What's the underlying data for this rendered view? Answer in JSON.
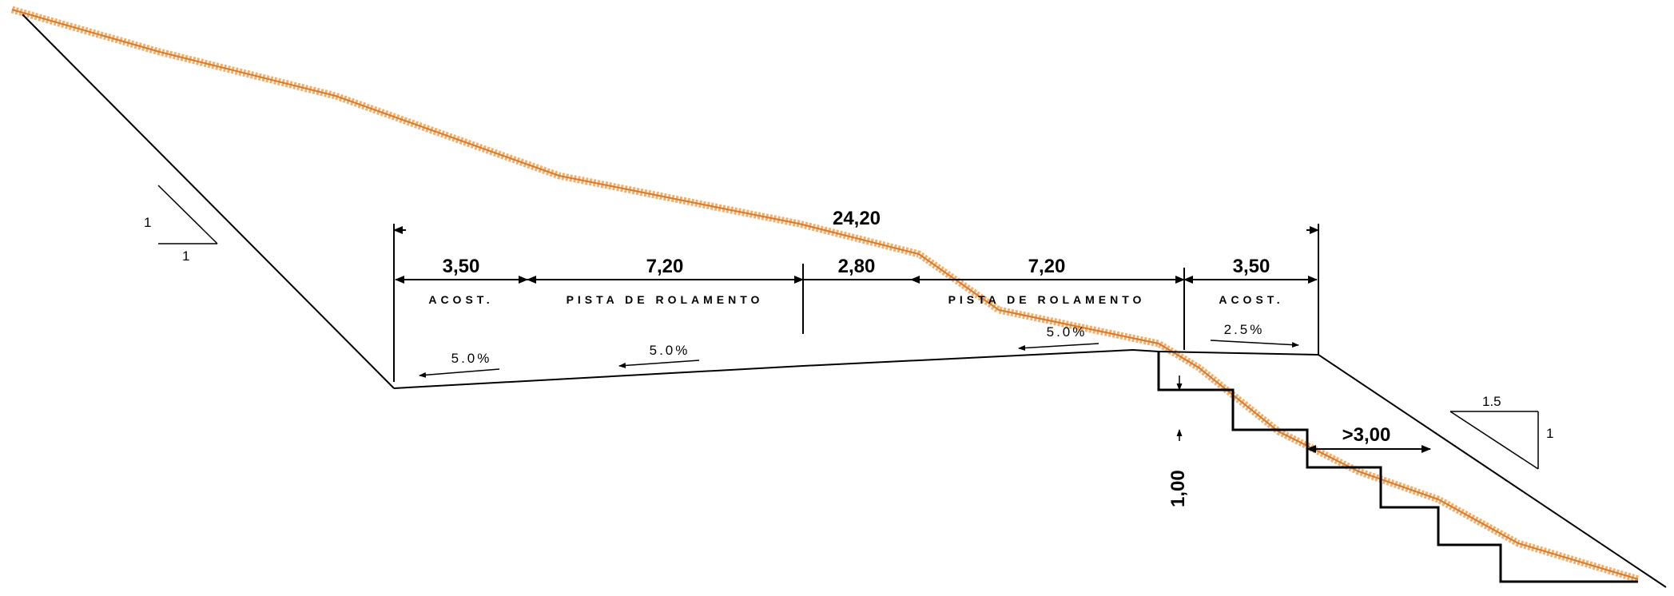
{
  "dimensions": {
    "total": "24,20",
    "acost_left": "3,50",
    "pista_left": "7,20",
    "canteiro": "2,80",
    "pista_right": "7,20",
    "acost_right": "3,50",
    "step_height": "1,00",
    "step_width": ">3,00"
  },
  "labels": {
    "acost_left": "ACOST.",
    "pista_left": "PISTA DE ROLAMENTO",
    "pista_right": "PISTA DE ROLAMENTO",
    "acost_right": "ACOST."
  },
  "slopes": {
    "acost_left": "5.0%",
    "pista_left": "5.0%",
    "pista_right": "5.0%",
    "acost_right": "2.5%"
  },
  "ratios": {
    "cut_v": "1",
    "cut_h": "1",
    "fill_h": "1.5",
    "fill_v": "1"
  },
  "colors": {
    "terrain": "#f0a050",
    "lines": "#000000"
  }
}
